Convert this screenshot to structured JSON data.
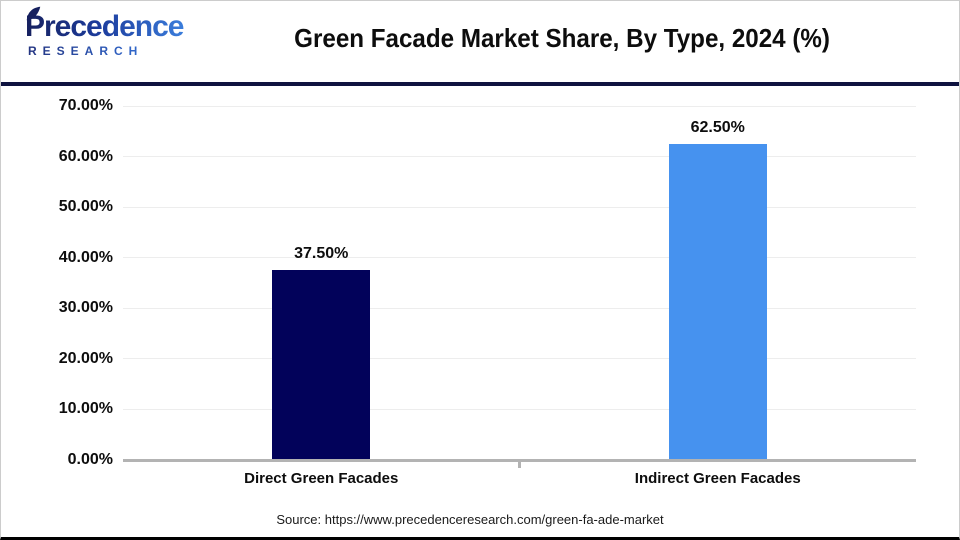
{
  "header": {
    "logo": {
      "line1": "Precedence",
      "line2": "RESEARCH"
    }
  },
  "chart_data": {
    "type": "bar",
    "title": "Green Facade Market Share, By Type, 2024 (%)",
    "categories": [
      "Direct Green Facades",
      "Indirect Green Facades"
    ],
    "values": [
      37.5,
      62.5
    ],
    "value_labels": [
      "37.50%",
      "62.50%"
    ],
    "bar_colors": [
      "#02025a",
      "#4692ef"
    ],
    "xlabel": "",
    "ylabel": "",
    "ylim": [
      0,
      70
    ],
    "yticks": [
      0,
      10,
      20,
      30,
      40,
      50,
      60,
      70
    ],
    "ytick_labels": [
      "0.00%",
      "10.00%",
      "20.00%",
      "30.00%",
      "40.00%",
      "50.00%",
      "60.00%",
      "70.00%"
    ],
    "grid": true,
    "legend": false
  },
  "footer": {
    "source": "Source: https://www.precedenceresearch.com/green-fa-ade-market"
  },
  "colors": {
    "header_rule": "#0f1340",
    "axis": "#b3b3b3",
    "gridline": "#ededed",
    "logo_navy": "#16205e",
    "logo_blue": "#3f86e4"
  }
}
